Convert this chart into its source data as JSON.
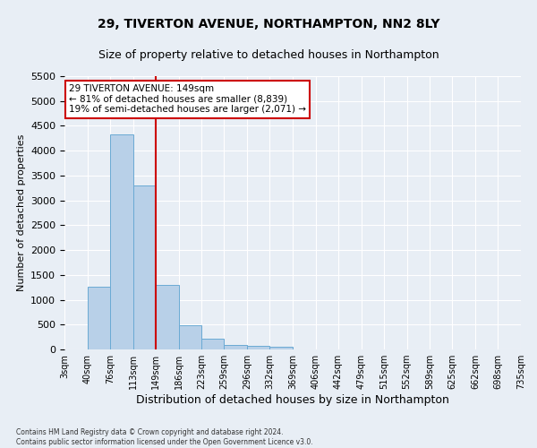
{
  "title1": "29, TIVERTON AVENUE, NORTHAMPTON, NN2 8LY",
  "title2": "Size of property relative to detached houses in Northampton",
  "xlabel": "Distribution of detached houses by size in Northampton",
  "ylabel": "Number of detached properties",
  "annotation_line1": "29 TIVERTON AVENUE: 149sqm",
  "annotation_line2": "← 81% of detached houses are smaller (8,839)",
  "annotation_line3": "19% of semi-detached houses are larger (2,071) →",
  "footer1": "Contains HM Land Registry data © Crown copyright and database right 2024.",
  "footer2": "Contains public sector information licensed under the Open Government Licence v3.0.",
  "bar_values": [
    0,
    1270,
    4330,
    3300,
    1290,
    490,
    215,
    90,
    65,
    55,
    0,
    0,
    0,
    0,
    0,
    0,
    0,
    0,
    0,
    0
  ],
  "bin_edges": [
    3,
    40,
    76,
    113,
    149,
    186,
    223,
    259,
    296,
    332,
    369,
    406,
    442,
    479,
    515,
    552,
    589,
    625,
    662,
    698,
    735
  ],
  "bin_labels": [
    "3sqm",
    "40sqm",
    "76sqm",
    "113sqm",
    "149sqm",
    "186sqm",
    "223sqm",
    "259sqm",
    "296sqm",
    "332sqm",
    "369sqm",
    "406sqm",
    "442sqm",
    "479sqm",
    "515sqm",
    "552sqm",
    "589sqm",
    "625sqm",
    "662sqm",
    "698sqm",
    "735sqm"
  ],
  "bar_color": "#b8d0e8",
  "bar_edge_color": "#6aaad4",
  "vline_x": 149,
  "vline_color": "#cc0000",
  "ylim": [
    0,
    5500
  ],
  "yticks": [
    0,
    500,
    1000,
    1500,
    2000,
    2500,
    3000,
    3500,
    4000,
    4500,
    5000,
    5500
  ],
  "bg_color": "#e8eef5",
  "plot_bg_color": "#e8eef5",
  "grid_color": "#ffffff",
  "annotation_box_facecolor": "#ffffff",
  "annotation_box_edge": "#cc0000",
  "title1_fontsize": 10,
  "title2_fontsize": 9
}
